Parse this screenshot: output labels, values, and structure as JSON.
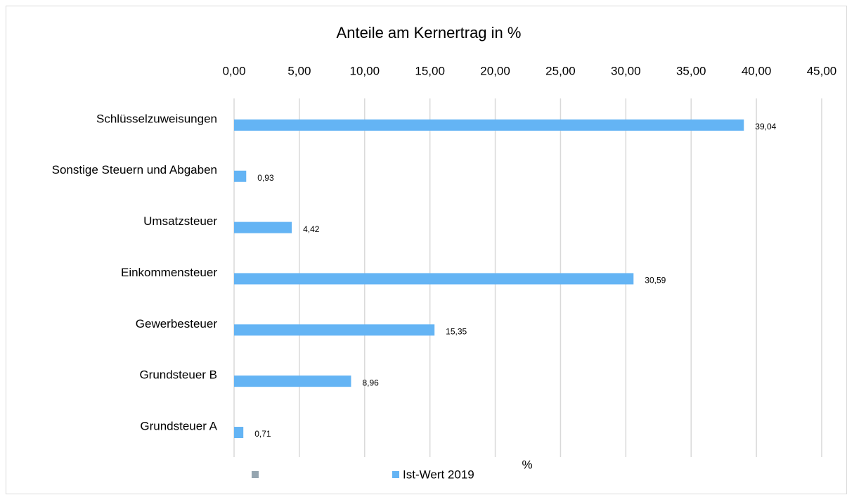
{
  "chart_data": {
    "type": "hbar",
    "title": "Anteile am Kernertrag in %",
    "x_label": "%",
    "categories": [
      "Schlüsselzuweisungen",
      "Sonstige Steuern und Abgaben",
      "Umsatzsteuer",
      "Einkommensteuer",
      "Gewerbesteuer",
      "Grundsteuer B",
      "Grundsteuer A"
    ],
    "series": [
      {
        "name": "Ist-Wert 2019",
        "color": "#64b4f4",
        "values": [
          39.04,
          0.93,
          4.42,
          30.59,
          15.35,
          8.96,
          0.71
        ],
        "value_labels": [
          "39,04",
          "0,93",
          "4,42",
          "30,59",
          "15,35",
          "8,96",
          "0,71"
        ]
      }
    ],
    "xlim": [
      0,
      45
    ],
    "xticks": [
      {
        "value": 0,
        "label": "0,00"
      },
      {
        "value": 5,
        "label": "5,00"
      },
      {
        "value": 10,
        "label": "10,00"
      },
      {
        "value": 15,
        "label": "15,00"
      },
      {
        "value": 20,
        "label": "20,00"
      },
      {
        "value": 25,
        "label": "25,00"
      },
      {
        "value": 30,
        "label": "30,00"
      },
      {
        "value": 35,
        "label": "35,00"
      },
      {
        "value": 40,
        "label": "40,00"
      },
      {
        "value": 45,
        "label": "45,00"
      }
    ],
    "grid": true,
    "legend": "bottom"
  }
}
